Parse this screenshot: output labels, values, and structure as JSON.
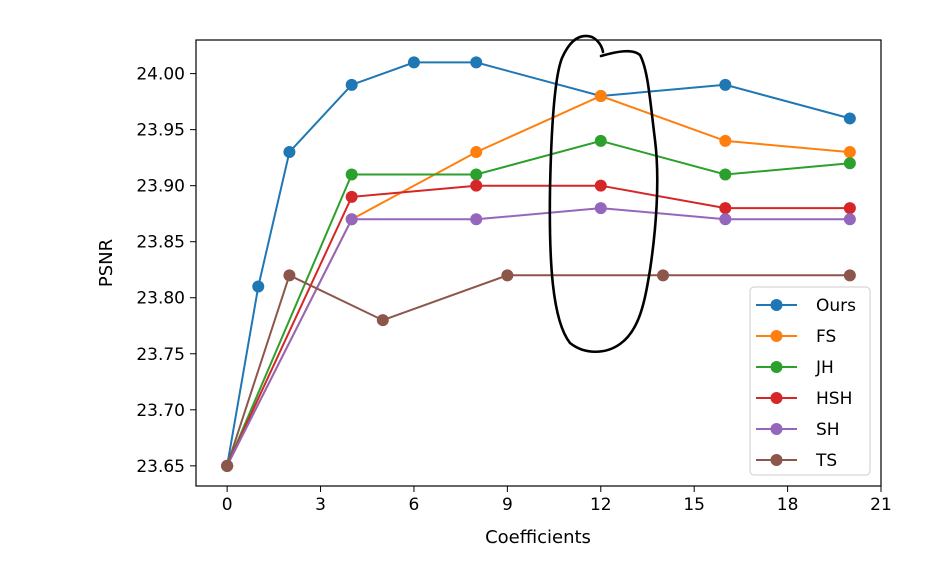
{
  "chart_data": {
    "type": "line",
    "xlabel": "Coefficients",
    "ylabel": "PSNR",
    "xlim": [
      -1,
      21
    ],
    "ylim": [
      23.632,
      24.03
    ],
    "xticks": [
      0,
      3,
      6,
      9,
      12,
      15,
      18,
      21
    ],
    "xtick_labels": [
      "0",
      "3",
      "6",
      "9",
      "12",
      "15",
      "18",
      "21"
    ],
    "yticks": [
      23.65,
      23.7,
      23.75,
      23.8,
      23.85,
      23.9,
      23.95,
      24.0
    ],
    "ytick_labels": [
      "23.65",
      "23.70",
      "23.75",
      "23.80",
      "23.85",
      "23.90",
      "23.95",
      "24.00"
    ],
    "grid": false,
    "legend_position": "lower-right",
    "series": [
      {
        "name": "Ours",
        "color": "#1f77b4",
        "x": [
          0,
          1,
          2,
          4,
          6,
          8,
          12,
          16,
          20
        ],
        "y": [
          23.65,
          23.81,
          23.93,
          23.99,
          24.01,
          24.01,
          23.98,
          23.99,
          23.96
        ]
      },
      {
        "name": "FS",
        "color": "#ff7f0e",
        "x": [
          0,
          4,
          8,
          12,
          16,
          20
        ],
        "y": [
          23.65,
          23.87,
          23.93,
          23.98,
          23.94,
          23.93
        ]
      },
      {
        "name": "JH",
        "color": "#2ca02c",
        "x": [
          0,
          4,
          8,
          12,
          16,
          20
        ],
        "y": [
          23.65,
          23.91,
          23.91,
          23.94,
          23.91,
          23.92
        ]
      },
      {
        "name": "HSH",
        "color": "#d62728",
        "x": [
          0,
          4,
          8,
          12,
          16,
          20
        ],
        "y": [
          23.65,
          23.89,
          23.9,
          23.9,
          23.88,
          23.88
        ]
      },
      {
        "name": "SH",
        "color": "#9467bd",
        "x": [
          0,
          4,
          8,
          12,
          16,
          20
        ],
        "y": [
          23.65,
          23.87,
          23.87,
          23.88,
          23.87,
          23.87
        ]
      },
      {
        "name": "TS",
        "color": "#8c564b",
        "x": [
          0,
          2,
          5,
          9,
          14,
          20
        ],
        "y": [
          23.65,
          23.82,
          23.78,
          23.82,
          23.82,
          23.82
        ]
      }
    ],
    "annotation": {
      "type": "hand-drawn-loop",
      "color": "#000000",
      "around_x": 12
    }
  }
}
